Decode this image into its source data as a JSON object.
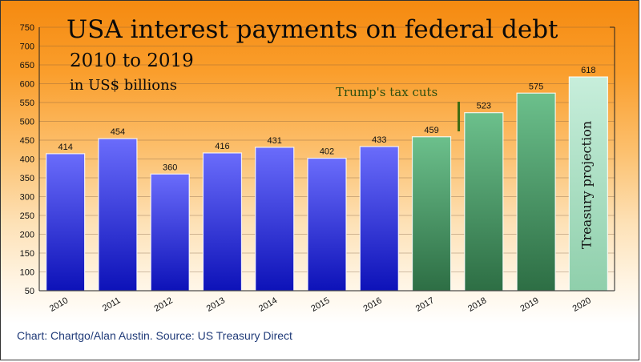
{
  "chart_data": {
    "type": "bar",
    "title": "USA interest payments on federal debt",
    "subtitle": "2010 to 2019",
    "unit_label": "in US$ billions",
    "categories": [
      "2010",
      "2011",
      "2012",
      "2013",
      "2014",
      "2015",
      "2016",
      "2017",
      "2018",
      "2019",
      "2020"
    ],
    "values": [
      414,
      454,
      360,
      416,
      431,
      402,
      433,
      459,
      523,
      575,
      618
    ],
    "data_labels": [
      "414",
      "454",
      "360",
      "416",
      "431",
      "402",
      "433",
      "459",
      "523",
      "575",
      "618"
    ],
    "bar_colors": [
      "blue",
      "blue",
      "blue",
      "blue",
      "blue",
      "blue",
      "blue",
      "green",
      "green",
      "green",
      "light-green"
    ],
    "colors": {
      "blue": "#4a4cf5",
      "green": "#4e9a66",
      "light-green": "#a6dbc0",
      "annotation": "#3d6b12"
    },
    "ylim": [
      50,
      750
    ],
    "yticks": [
      50,
      100,
      150,
      200,
      250,
      300,
      350,
      400,
      450,
      500,
      550,
      600,
      650,
      700,
      750
    ],
    "grid": true,
    "annotations": {
      "tax_cuts": "Trump's tax cuts",
      "projection": "Treasury projection"
    },
    "source": "Chart: Chartgo/Alan Austin. Source: US Treasury Direct"
  }
}
